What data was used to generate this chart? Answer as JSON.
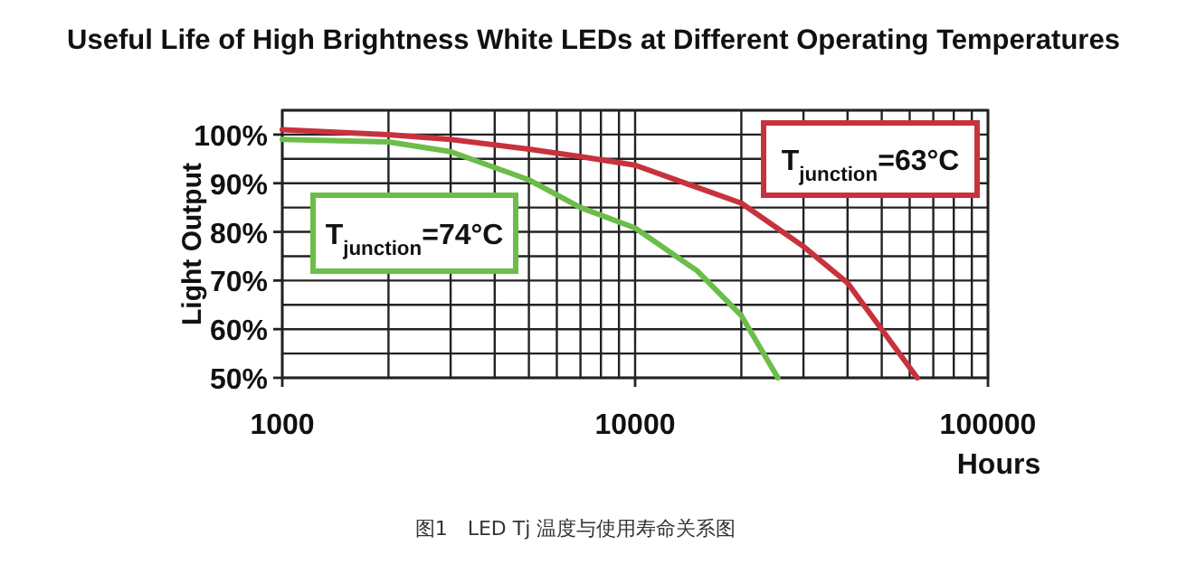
{
  "chart_data": {
    "type": "line",
    "title": "Useful Life of High Brightness White LEDs at Different Operating Temperatures",
    "xlabel": "Hours",
    "ylabel": "Light Output",
    "annotations": [
      "图1　LED Tj 温度与使用寿命关系图"
    ],
    "log": "x",
    "grid": true,
    "marker": "none",
    "line_style": "solid",
    "xlim": [
      1000,
      100000
    ],
    "xticks": [
      1000,
      10000,
      100000
    ],
    "ylim": [
      50,
      105
    ],
    "yticks": [
      {
        "value": 50,
        "label": "50%"
      },
      {
        "value": 60,
        "label": "60%"
      },
      {
        "value": 70,
        "label": "70%"
      },
      {
        "value": 80,
        "label": "80%"
      },
      {
        "value": 90,
        "label": "90%"
      },
      {
        "value": 100,
        "label": "100%"
      }
    ],
    "series": [
      {
        "name": "T$_{junction}$=63°C",
        "color": "#c8323c",
        "x": [
          1000,
          2000,
          3000,
          5000,
          7000,
          10000,
          20000,
          30000,
          40000,
          63000
        ],
        "values": [
          101,
          100,
          99,
          97,
          95.5,
          93.7,
          85.9,
          77,
          69.5,
          50
        ]
      },
      {
        "name": "T$_{junction}$=74°C",
        "color": "#6cbd4a",
        "x": [
          1000,
          2000,
          3000,
          5000,
          7000,
          10000,
          15000,
          20000,
          25400
        ],
        "values": [
          99,
          98.5,
          96.5,
          90.7,
          85,
          80.8,
          72,
          62.8,
          50
        ]
      }
    ]
  }
}
